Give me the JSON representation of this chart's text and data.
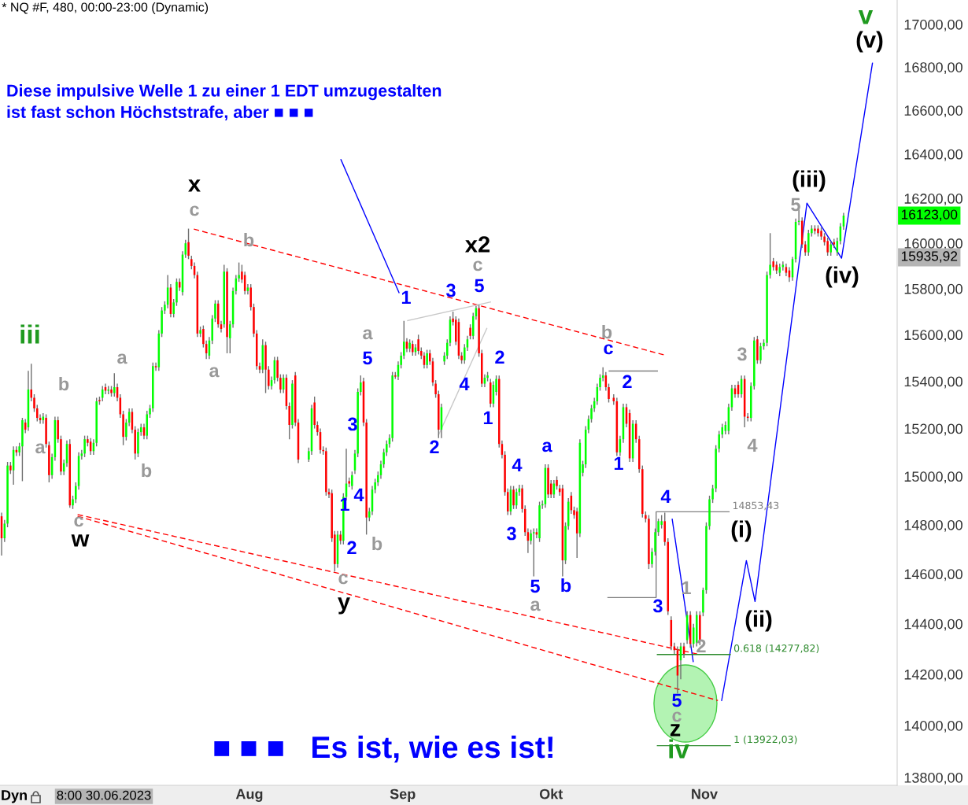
{
  "chart_data": {
    "type": "candlestick",
    "title": "* NQ #F, 480, 00:00-23:00 (Dynamic)",
    "log": true,
    "xlim": [
      "2023-06-11T13:12",
      "2023-12-10"
    ],
    "ylim": [
      13770,
      17115
    ],
    "xticks": [
      {
        "value": "2023-08-01",
        "label": "Aug"
      },
      {
        "value": "2023-09-01",
        "label": "Sep"
      },
      {
        "value": "2023-10-01",
        "label": "Okt"
      },
      {
        "value": "2023-11-01",
        "label": "Nov"
      }
    ],
    "yticks": [
      {
        "value": 13800,
        "label": "13800,00"
      },
      {
        "value": 14000,
        "label": "14000,00"
      },
      {
        "value": 14200,
        "label": "14200,00"
      },
      {
        "value": 14400,
        "label": "14400,00"
      },
      {
        "value": 14600,
        "label": "14600,00"
      },
      {
        "value": 14800,
        "label": "14800,00"
      },
      {
        "value": 15000,
        "label": "15000,00"
      },
      {
        "value": 15200,
        "label": "15200,00"
      },
      {
        "value": 15400,
        "label": "15400,00"
      },
      {
        "value": 15600,
        "label": "15600,00"
      },
      {
        "value": 15800,
        "label": "15800,00"
      },
      {
        "value": 16000,
        "label": "16000,00"
      },
      {
        "value": 16200,
        "label": "16200,00"
      },
      {
        "value": 16400,
        "label": "16400,00"
      },
      {
        "value": 16600,
        "label": "16600,00"
      },
      {
        "value": 16800,
        "label": "16800,00"
      },
      {
        "value": 17000,
        "label": "17000,00"
      }
    ],
    "color": "#707070",
    "x": [
      "2023-06-11T21:00",
      "2023-06-12T11:24",
      "2023-06-13T01:48",
      "2023-06-13T16:12",
      "2023-06-14T06:36",
      "2023-06-14T21:00",
      "2023-06-15T11:24",
      "2023-06-16T01:48",
      "2023-06-16T16:12",
      "2023-06-17T06:36",
      "2023-06-17T21:00",
      "2023-06-18T11:24",
      "2023-06-19T01:48",
      "2023-06-19T16:12",
      "2023-06-20T06:36",
      "2023-06-20T21:00",
      "2023-06-21T11:24",
      "2023-06-22T01:48",
      "2023-06-22T16:12",
      "2023-06-23T06:36",
      "2023-06-23T21:00",
      "2023-06-24T11:24",
      "2023-06-25T01:48",
      "2023-06-25T16:12",
      "2023-06-26T06:36",
      "2023-06-26T21:00",
      "2023-06-27T11:24",
      "2023-06-28T01:48",
      "2023-06-28T16:12",
      "2023-06-29T06:36",
      "2023-06-29T21:00",
      "2023-06-30T11:24",
      "2023-07-01T01:48",
      "2023-07-01T16:12",
      "2023-07-02T06:36",
      "2023-07-02T21:00",
      "2023-07-03T11:24",
      "2023-07-04T01:48",
      "2023-07-04T16:12",
      "2023-07-05T06:36",
      "2023-07-05T21:00",
      "2023-07-06T11:24",
      "2023-07-07T01:48",
      "2023-07-07T16:12",
      "2023-07-08T06:36",
      "2023-07-08T21:00",
      "2023-07-09T11:24",
      "2023-07-10T01:48",
      "2023-07-10T16:12",
      "2023-07-11T06:36",
      "2023-07-11T21:00",
      "2023-07-12T11:24",
      "2023-07-13T01:48",
      "2023-07-13T16:12",
      "2023-07-14T06:36",
      "2023-07-14T21:00",
      "2023-07-15T11:24",
      "2023-07-16T01:48",
      "2023-07-16T16:12",
      "2023-07-17T06:36",
      "2023-07-17T21:00",
      "2023-07-18T11:24",
      "2023-07-19T01:48",
      "2023-07-19T16:12",
      "2023-07-20T06:36",
      "2023-07-20T21:00",
      "2023-07-21T11:24",
      "2023-07-22T01:48",
      "2023-07-22T16:12",
      "2023-07-23T06:36",
      "2023-07-23T21:00",
      "2023-07-24T11:24",
      "2023-07-25T01:48",
      "2023-07-25T16:12",
      "2023-07-26T06:36",
      "2023-07-26T21:00",
      "2023-07-27T11:24",
      "2023-07-28T01:48",
      "2023-07-28T16:12",
      "2023-07-29T06:36",
      "2023-07-29T21:00",
      "2023-07-30T11:24",
      "2023-07-31T01:48",
      "2023-07-31T16:12",
      "2023-08-01T06:36",
      "2023-08-01T21:00",
      "2023-08-02T11:24",
      "2023-08-03T01:48",
      "2023-08-03T16:12",
      "2023-08-04T06:36",
      "2023-08-04T21:00",
      "2023-08-05T11:24",
      "2023-08-06T01:48",
      "2023-08-06T16:12",
      "2023-08-07T06:36",
      "2023-08-07T21:00",
      "2023-08-08T11:24",
      "2023-08-09T01:48",
      "2023-08-09T16:12",
      "2023-08-10T06:36",
      "2023-08-10T21:00",
      "2023-08-13T00:00",
      "2023-08-13T14:00",
      "2023-08-14T04:00",
      "2023-08-14T18:00",
      "2023-08-15T08:00",
      "2023-08-15T22:00",
      "2023-08-16T12:00",
      "2023-08-17T02:00",
      "2023-08-17T16:00",
      "2023-08-18T06:00",
      "2023-08-18T20:00",
      "2023-08-19T10:00",
      "2023-08-20T00:00",
      "2023-08-20T14:00",
      "2023-08-21T04:00",
      "2023-08-21T18:00",
      "2023-08-22T08:00",
      "2023-08-22T22:00",
      "2023-08-23T12:00",
      "2023-08-24T02:00",
      "2023-08-24T16:00",
      "2023-08-25T06:00",
      "2023-08-25T20:00",
      "2023-08-26T10:00",
      "2023-08-27T00:00",
      "2023-08-27T14:00",
      "2023-08-28T04:00",
      "2023-08-28T18:00",
      "2023-08-29T08:00",
      "2023-08-29T22:00",
      "2023-08-30T12:00",
      "2023-08-31T02:00",
      "2023-08-31T16:00",
      "2023-09-01T06:00",
      "2023-09-01T20:00",
      "2023-09-02T10:00",
      "2023-09-03T00:00",
      "2023-09-03T14:00",
      "2023-09-04T04:00",
      "2023-09-04T18:00",
      "2023-09-05T08:00",
      "2023-09-05T22:00",
      "2023-09-06T12:00",
      "2023-09-07T02:00",
      "2023-09-07T16:00",
      "2023-09-08T06:00",
      "2023-09-08T20:00",
      "2023-09-09T10:00",
      "2023-09-10T00:00",
      "2023-09-10T14:00",
      "2023-09-11T04:00",
      "2023-09-11T18:00",
      "2023-09-12T08:00",
      "2023-09-12T22:00",
      "2023-09-13T12:00",
      "2023-09-14T02:00",
      "2023-09-14T16:00",
      "2023-09-15T06:00",
      "2023-09-15T20:00",
      "2023-09-16T10:00",
      "2023-09-17T00:00",
      "2023-09-17T14:00",
      "2023-09-18T04:00",
      "2023-09-18T18:00",
      "2023-09-19T08:00",
      "2023-09-19T22:00",
      "2023-09-20T12:00",
      "2023-09-21T02:00",
      "2023-09-21T16:00",
      "2023-09-22T06:00",
      "2023-09-22T20:00",
      "2023-09-23T10:00",
      "2023-09-24T00:00",
      "2023-09-24T14:00",
      "2023-09-25T04:00",
      "2023-09-25T18:00",
      "2023-09-26T08:00",
      "2023-09-26T22:00",
      "2023-09-27T12:00",
      "2023-09-28T02:00",
      "2023-09-28T16:00",
      "2023-09-29T06:00",
      "2023-09-29T20:00",
      "2023-09-30T10:00",
      "2023-10-01T00:00",
      "2023-10-01T14:00",
      "2023-10-02T04:00",
      "2023-10-02T18:00",
      "2023-10-03T08:00",
      "2023-10-03T22:00",
      "2023-10-04T12:00",
      "2023-10-05T02:00",
      "2023-10-05T16:00",
      "2023-10-06T06:00",
      "2023-10-06T20:00",
      "2023-10-07T10:00",
      "2023-10-08T00:00",
      "2023-10-08T14:00",
      "2023-10-09T04:00",
      "2023-10-09T18:00",
      "2023-10-10T08:00",
      "2023-10-10T22:00",
      "2023-10-11T12:00",
      "2023-10-12T02:00",
      "2023-10-12T16:00",
      "2023-10-13T16:00",
      "2023-10-14T07:30",
      "2023-10-14T23:00",
      "2023-10-15T14:30",
      "2023-10-16T06:00",
      "2023-10-16T21:30",
      "2023-10-17T13:00",
      "2023-10-18T04:30",
      "2023-10-18T20:00",
      "2023-10-19T11:30",
      "2023-10-20T03:00",
      "2023-10-20T18:30",
      "2023-10-21T10:00",
      "2023-10-22T01:30",
      "2023-10-22T17:00",
      "2023-10-23T08:30",
      "2023-10-24T00:00",
      "2023-10-24T15:30",
      "2023-10-25T07:00",
      "2023-10-25T22:30",
      "2023-10-26T14:00",
      "2023-10-27T05:30",
      "2023-10-27T21:00",
      "2023-10-28T12:30",
      "2023-10-29T04:00",
      "2023-10-29T19:30",
      "2023-10-30T11:00",
      "2023-10-31T02:30",
      "2023-10-31T18:00",
      "2023-11-01T09:30",
      "2023-11-02T01:00",
      "2023-11-02T16:30",
      "2023-11-03T08:00",
      "2023-11-03T23:30",
      "2023-11-04T15:00",
      "2023-11-05T06:30",
      "2023-11-05T22:00",
      "2023-11-06T13:30",
      "2023-11-07T05:00",
      "2023-11-07T20:30",
      "2023-11-08T12:00",
      "2023-11-09T03:30",
      "2023-11-09T19:00",
      "2023-11-10T10:30",
      "2023-11-11T02:00",
      "2023-11-11T17:30",
      "2023-11-12T09:00",
      "2023-11-13T00:30",
      "2023-11-13T16:00",
      "2023-11-14T07:30",
      "2023-11-14T23:00",
      "2023-11-15T14:30",
      "2023-11-16T06:00",
      "2023-11-16T21:30",
      "2023-11-17T13:00",
      "2023-11-18T04:30",
      "2023-11-18T20:00",
      "2023-11-19T11:30",
      "2023-11-20T03:00",
      "2023-11-20T18:30",
      "2023-11-21T10:00",
      "2023-11-22T01:30",
      "2023-11-22T17:00",
      "2023-11-23T08:30",
      "2023-11-24T00:00",
      "2023-11-24T15:30",
      "2023-11-25T07:00",
      "2023-11-25T22:30",
      "2023-11-26T14:00",
      "2023-11-27T05:30",
      "2023-11-27T21:00",
      "2023-11-28T12:30",
      "2023-11-29T04:00"
    ],
    "ohlc": [
      [
        14835,
        14850,
        14675,
        14745
      ],
      [
        14745,
        14820,
        14730,
        14805
      ],
      [
        14805,
        15060,
        14790,
        15045
      ],
      [
        15045,
        15060,
        15010,
        15025
      ],
      [
        15025,
        15125,
        14965,
        15110
      ],
      [
        15110,
        15125,
        15085,
        15100
      ],
      [
        15100,
        15140,
        15085,
        15125
      ],
      [
        15125,
        15245,
        14980,
        15235
      ],
      [
        15225,
        15240,
        15180,
        15195
      ],
      [
        15205,
        15445,
        15190,
        15365
      ],
      [
        15365,
        15475,
        15315,
        15330
      ],
      [
        15330,
        15345,
        15270,
        15285
      ],
      [
        15285,
        15300,
        15230,
        15245
      ],
      [
        15245,
        15260,
        15220,
        15235
      ],
      [
        15235,
        15265,
        15220,
        15250
      ],
      [
        15245,
        15260,
        15120,
        15135
      ],
      [
        15130,
        15145,
        14975,
        15005
      ],
      [
        15005,
        15095,
        14990,
        15080
      ],
      [
        15080,
        15250,
        15065,
        15235
      ],
      [
        15235,
        15250,
        15140,
        15155
      ],
      [
        15155,
        15170,
        15005,
        15020
      ],
      [
        15020,
        15070,
        15005,
        15055
      ],
      [
        15055,
        15150,
        15040,
        15135
      ],
      [
        15135,
        15155,
        14870,
        14880
      ],
      [
        14880,
        14920,
        14865,
        14905
      ],
      [
        14905,
        14975,
        14890,
        14960
      ],
      [
        14960,
        15100,
        14945,
        15085
      ],
      [
        15085,
        15110,
        15070,
        15095
      ],
      [
        15095,
        15170,
        15080,
        15155
      ],
      [
        15155,
        15170,
        15125,
        15140
      ],
      [
        15145,
        15160,
        15090,
        15105
      ],
      [
        15105,
        15155,
        15090,
        15140
      ],
      [
        15140,
        15330,
        15125,
        15315
      ],
      [
        15320,
        15335,
        15300,
        15315
      ],
      [
        15330,
        15380,
        15315,
        15365
      ],
      [
        15375,
        15390,
        15345,
        15360
      ],
      [
        15360,
        15380,
        15345,
        15365
      ],
      [
        15365,
        15380,
        15335,
        15350
      ],
      [
        15350,
        15435,
        15335,
        15375
      ],
      [
        15375,
        15390,
        15315,
        15330
      ],
      [
        15330,
        15345,
        15245,
        15260
      ],
      [
        15260,
        15275,
        15130,
        15165
      ],
      [
        15165,
        15240,
        15150,
        15225
      ],
      [
        15225,
        15285,
        15210,
        15270
      ],
      [
        15270,
        15285,
        15180,
        15195
      ],
      [
        15195,
        15210,
        15070,
        15095
      ],
      [
        15095,
        15200,
        15080,
        15185
      ],
      [
        15185,
        15220,
        15170,
        15205
      ],
      [
        15205,
        15220,
        15155,
        15170
      ],
      [
        15170,
        15275,
        15155,
        15260
      ],
      [
        15260,
        15300,
        15245,
        15285
      ],
      [
        15285,
        15480,
        15270,
        15465
      ],
      [
        15465,
        15480,
        15445,
        15460
      ],
      [
        15460,
        15620,
        15445,
        15605
      ],
      [
        15605,
        15720,
        15590,
        15705
      ],
      [
        15705,
        15745,
        15690,
        15730
      ],
      [
        15730,
        15860,
        15715,
        15805
      ],
      [
        15805,
        15820,
        15675,
        15690
      ],
      [
        15690,
        15755,
        15675,
        15740
      ],
      [
        15740,
        15845,
        15725,
        15830
      ],
      [
        15830,
        15845,
        15790,
        15805
      ],
      [
        15785,
        15965,
        15770,
        15950
      ],
      [
        15950,
        16015,
        15935,
        16000
      ],
      [
        16005,
        16065,
        15930,
        15945
      ],
      [
        15930,
        15945,
        15885,
        15900
      ],
      [
        15900,
        15915,
        15845,
        15860
      ],
      [
        15860,
        15875,
        15590,
        15605
      ],
      [
        15605,
        15635,
        15590,
        15620
      ],
      [
        15625,
        15640,
        15545,
        15560
      ],
      [
        15560,
        15575,
        15495,
        15520
      ],
      [
        15510,
        15590,
        15495,
        15575
      ],
      [
        15575,
        15685,
        15560,
        15670
      ],
      [
        15670,
        15750,
        15655,
        15735
      ],
      [
        15735,
        15750,
        15630,
        15645
      ],
      [
        15645,
        15660,
        15610,
        15625
      ],
      [
        15645,
        15905,
        15630,
        15875
      ],
      [
        15875,
        15890,
        15520,
        15590
      ],
      [
        15585,
        15660,
        15520,
        15645
      ],
      [
        15645,
        15805,
        15630,
        15790
      ],
      [
        15790,
        15860,
        15775,
        15845
      ],
      [
        15845,
        15915,
        15830,
        15860
      ],
      [
        15875,
        15905,
        15825,
        15840
      ],
      [
        15860,
        15875,
        15775,
        15790
      ],
      [
        15790,
        15820,
        15775,
        15805
      ],
      [
        15805,
        15820,
        15705,
        15720
      ],
      [
        15720,
        15735,
        15590,
        15605
      ],
      [
        15605,
        15620,
        15450,
        15465
      ],
      [
        15465,
        15480,
        15435,
        15450
      ],
      [
        15450,
        15580,
        15435,
        15555
      ],
      [
        15555,
        15570,
        15350,
        15450
      ],
      [
        15450,
        15465,
        15365,
        15380
      ],
      [
        15380,
        15420,
        15365,
        15405
      ],
      [
        15405,
        15505,
        15390,
        15490
      ],
      [
        15490,
        15505,
        15400,
        15415
      ],
      [
        15415,
        15430,
        15350,
        15365
      ],
      [
        15365,
        15430,
        15350,
        15415
      ],
      [
        15415,
        15430,
        15280,
        15295
      ],
      [
        15295,
        15310,
        15155,
        15215
      ],
      [
        15215,
        15405,
        15200,
        15390
      ],
      [
        15425,
        15440,
        15210,
        15225
      ],
      [
        15225,
        15240,
        15055,
        15070
      ],
      [
        15070,
        15120,
        15060,
        15105
      ],
      [
        15105,
        15300,
        15090,
        15285
      ],
      [
        15310,
        15335,
        15200,
        15215
      ],
      [
        15215,
        15230,
        15170,
        15185
      ],
      [
        15185,
        15200,
        15095,
        15110
      ],
      [
        15110,
        15125,
        15090,
        15105
      ],
      [
        15105,
        15120,
        14920,
        14935
      ],
      [
        14935,
        14950,
        14910,
        14925
      ],
      [
        14930,
        14945,
        14730,
        14745
      ],
      [
        14760,
        14775,
        14610,
        14640
      ],
      [
        14640,
        14775,
        14625,
        14760
      ],
      [
        14760,
        14775,
        14720,
        14735
      ],
      [
        14735,
        14930,
        14720,
        14915
      ],
      [
        14915,
        15115,
        14900,
        14970
      ],
      [
        14980,
        14995,
        14955,
        14970
      ],
      [
        14960,
        15020,
        14945,
        15005
      ],
      [
        15025,
        15110,
        15010,
        15095
      ],
      [
        15095,
        15370,
        15080,
        15355
      ],
      [
        15355,
        15425,
        15340,
        15395
      ],
      [
        15400,
        15415,
        15210,
        15225
      ],
      [
        15225,
        15240,
        14760,
        14830
      ],
      [
        14830,
        14870,
        14815,
        14855
      ],
      [
        14855,
        14960,
        14840,
        14945
      ],
      [
        14945,
        14990,
        14930,
        14975
      ],
      [
        14975,
        15020,
        14960,
        15005
      ],
      [
        15005,
        15065,
        14990,
        15050
      ],
      [
        15050,
        15115,
        15035,
        15100
      ],
      [
        15100,
        15150,
        15085,
        15135
      ],
      [
        15135,
        15175,
        15120,
        15160
      ],
      [
        15160,
        15440,
        15145,
        15425
      ],
      [
        15425,
        15440,
        15410,
        15420
      ],
      [
        15420,
        15485,
        15405,
        15470
      ],
      [
        15470,
        15525,
        15455,
        15510
      ],
      [
        15510,
        15660,
        15495,
        15570
      ],
      [
        15570,
        15585,
        15525,
        15540
      ],
      [
        15540,
        15580,
        15525,
        15565
      ],
      [
        15560,
        15575,
        15510,
        15525
      ],
      [
        15525,
        15560,
        15510,
        15545
      ],
      [
        15580,
        15600,
        15515,
        15530
      ],
      [
        15530,
        15545,
        15495,
        15510
      ],
      [
        15510,
        15525,
        15455,
        15470
      ],
      [
        15470,
        15535,
        15455,
        15520
      ],
      [
        15520,
        15535,
        15470,
        15485
      ],
      [
        15485,
        15500,
        15380,
        15395
      ],
      [
        15390,
        15405,
        15330,
        15345
      ],
      [
        15345,
        15360,
        15160,
        15195
      ],
      [
        15195,
        15305,
        15160,
        15290
      ],
      [
        15485,
        15525,
        15470,
        15510
      ],
      [
        15510,
        15580,
        15495,
        15565
      ],
      [
        15565,
        15680,
        15550,
        15665
      ],
      [
        15670,
        15700,
        15640,
        15655
      ],
      [
        15665,
        15680,
        15555,
        15570
      ],
      [
        15655,
        15670,
        15495,
        15510
      ],
      [
        15510,
        15525,
        15475,
        15490
      ],
      [
        15490,
        15560,
        15475,
        15545
      ],
      [
        15545,
        15595,
        15530,
        15580
      ],
      [
        15630,
        15645,
        15580,
        15595
      ],
      [
        15595,
        15695,
        15580,
        15680
      ],
      [
        15680,
        15725,
        15665,
        15715
      ],
      [
        15715,
        15730,
        15505,
        15520
      ],
      [
        15520,
        15535,
        15375,
        15390
      ],
      [
        15390,
        15430,
        15375,
        15415
      ],
      [
        15415,
        15440,
        15400,
        15425
      ],
      [
        15395,
        15410,
        15290,
        15305
      ],
      [
        15305,
        15400,
        15290,
        15385
      ],
      [
        15355,
        15425,
        15340,
        15410
      ],
      [
        15410,
        15425,
        15120,
        15135
      ],
      [
        15135,
        15150,
        15075,
        15090
      ],
      [
        15090,
        15105,
        14920,
        14935
      ],
      [
        14935,
        14950,
        14840,
        14855
      ],
      [
        14855,
        14960,
        14840,
        14945
      ],
      [
        14945,
        14960,
        14865,
        14880
      ],
      [
        14880,
        14950,
        14865,
        14935
      ],
      [
        14935,
        14965,
        14920,
        14950
      ],
      [
        14950,
        14965,
        14850,
        14865
      ],
      [
        14865,
        14880,
        14755,
        14770
      ],
      [
        14770,
        14785,
        14685,
        14735
      ],
      [
        14735,
        14780,
        14720,
        14765
      ],
      [
        14765,
        14785,
        14590,
        14770
      ],
      [
        14770,
        14785,
        14745,
        14760
      ],
      [
        14745,
        14895,
        14730,
        14880
      ],
      [
        14880,
        14900,
        14865,
        14885
      ],
      [
        14885,
        15050,
        14870,
        15035
      ],
      [
        15035,
        15050,
        14910,
        14925
      ],
      [
        14970,
        14985,
        14910,
        14925
      ],
      [
        14925,
        14985,
        14910,
        14970
      ],
      [
        14985,
        15000,
        14945,
        14960
      ],
      [
        14950,
        14965,
        14920,
        14935
      ],
      [
        14950,
        14965,
        14590,
        14655
      ],
      [
        14655,
        14810,
        14640,
        14795
      ],
      [
        14795,
        14910,
        14780,
        14895
      ],
      [
        14920,
        14935,
        14845,
        14860
      ],
      [
        14860,
        14875,
        14825,
        14840
      ],
      [
        14855,
        14870,
        14665,
        14765
      ],
      [
        14765,
        15155,
        14750,
        15140
      ],
      [
        15015,
        15065,
        15000,
        15050
      ],
      [
        15050,
        15210,
        15035,
        15195
      ],
      [
        15195,
        15255,
        15180,
        15240
      ],
      [
        15240,
        15300,
        15225,
        15285
      ],
      [
        15285,
        15330,
        15270,
        15315
      ],
      [
        15315,
        15390,
        15300,
        15375
      ],
      [
        15375,
        15430,
        15360,
        15415
      ],
      [
        15415,
        15460,
        15400,
        15425
      ],
      [
        15425,
        15440,
        15360,
        15375
      ],
      [
        15375,
        15390,
        15310,
        15325
      ],
      [
        15330,
        15345,
        15300,
        15315
      ],
      [
        15315,
        15330,
        15085,
        15100
      ],
      [
        15100,
        15170,
        15085,
        15155
      ],
      [
        15155,
        15305,
        15140,
        15290
      ],
      [
        15290,
        15305,
        15205,
        15220
      ],
      [
        15265,
        15280,
        15060,
        15075
      ],
      [
        15075,
        15235,
        15060,
        15220
      ],
      [
        15220,
        15235,
        15140,
        15155
      ],
      [
        15155,
        15170,
        15015,
        15030
      ],
      [
        15030,
        15045,
        14830,
        14845
      ],
      [
        14840,
        14855,
        14810,
        14825
      ],
      [
        14825,
        14840,
        14620,
        14640
      ],
      [
        14640,
        14705,
        14625,
        14690
      ],
      [
        14690,
        14785,
        14675,
        14770
      ],
      [
        14770,
        14825,
        14755,
        14815
      ],
      [
        14800,
        14840,
        14785,
        14815
      ],
      [
        14815,
        14850,
        14715,
        14730
      ],
      [
        14730,
        14745,
        14435,
        14450
      ],
      [
        14415,
        14430,
        14295,
        14310
      ],
      [
        14310,
        14325,
        14280,
        14295
      ],
      [
        14295,
        14310,
        14125,
        14195
      ],
      [
        14255,
        14325,
        14180,
        14310
      ],
      [
        14310,
        14325,
        14265,
        14280
      ],
      [
        14335,
        14450,
        14320,
        14435
      ],
      [
        14435,
        14450,
        14305,
        14320
      ],
      [
        14320,
        14400,
        14305,
        14385
      ],
      [
        14325,
        14450,
        14310,
        14435
      ],
      [
        14435,
        14450,
        14315,
        14330
      ],
      [
        14445,
        14545,
        14430,
        14535
      ],
      [
        14535,
        14810,
        14520,
        14795
      ],
      [
        14795,
        14920,
        14780,
        14905
      ],
      [
        14905,
        14965,
        14890,
        14950
      ],
      [
        14950,
        15130,
        14935,
        15115
      ],
      [
        15115,
        15190,
        15100,
        15175
      ],
      [
        15175,
        15220,
        15160,
        15205
      ],
      [
        15190,
        15230,
        15175,
        15215
      ],
      [
        15190,
        15305,
        15175,
        15290
      ],
      [
        15290,
        15385,
        15275,
        15370
      ],
      [
        15370,
        15385,
        15330,
        15345
      ],
      [
        15385,
        15400,
        15330,
        15345
      ],
      [
        15345,
        15425,
        15330,
        15410
      ],
      [
        15410,
        15425,
        15205,
        15250
      ],
      [
        15250,
        15265,
        15230,
        15245
      ],
      [
        15245,
        15395,
        15230,
        15380
      ],
      [
        15380,
        15590,
        15365,
        15575
      ],
      [
        15580,
        15595,
        15475,
        15490
      ],
      [
        15490,
        15565,
        15475,
        15550
      ],
      [
        15550,
        15580,
        15535,
        15565
      ],
      [
        15565,
        15875,
        15550,
        15860
      ],
      [
        15860,
        16045,
        15845,
        15905
      ],
      [
        15920,
        15935,
        15880,
        15895
      ],
      [
        15905,
        15920,
        15865,
        15880
      ],
      [
        15870,
        15910,
        15855,
        15895
      ],
      [
        15895,
        15920,
        15880,
        15905
      ],
      [
        15895,
        15910,
        15855,
        15870
      ],
      [
        15880,
        15895,
        15830,
        15850
      ],
      [
        15850,
        15940,
        15835,
        15930
      ],
      [
        15930,
        16110,
        15915,
        16095
      ],
      [
        16095,
        16150,
        16080,
        16100
      ],
      [
        16100,
        16115,
        15980,
        15995
      ],
      [
        15995,
        16010,
        15945,
        15960
      ],
      [
        15960,
        16060,
        15945,
        16045
      ],
      [
        16045,
        16080,
        16030,
        16065
      ],
      [
        16065,
        16080,
        16040,
        16055
      ],
      [
        16065,
        16080,
        16030,
        16045
      ],
      [
        16055,
        16070,
        16015,
        16030
      ],
      [
        16030,
        16045,
        15990,
        16005
      ],
      [
        16010,
        16025,
        15945,
        15960
      ],
      [
        15960,
        16010,
        15945,
        15995
      ],
      [
        16005,
        16020,
        15980,
        15995
      ],
      [
        15960,
        16025,
        15945,
        16010
      ],
      [
        16010,
        16090,
        15995,
        16075
      ],
      [
        16075,
        16135,
        16060,
        16123
      ]
    ],
    "colors": [
      "#ff0000",
      "#00ff00",
      "#00ff00",
      "#ff0000",
      "#00ff00",
      "#ff0000",
      "#00ff00",
      "#00ff00",
      "#ff0000",
      "#00ff00",
      "#ff0000",
      "#ff0000",
      "#ff0000",
      "#ff0000",
      "#00ff00",
      "#ff0000",
      "#ff0000",
      "#00ff00",
      "#00ff00",
      "#ff0000",
      "#ff0000",
      "#00ff00",
      "#00ff00",
      "#ff0000",
      "#00ff00",
      "#00ff00",
      "#00ff00",
      "#00ff00",
      "#00ff00",
      "#ff0000",
      "#ff0000",
      "#00ff00",
      "#00ff00",
      "#ff0000",
      "#00ff00",
      "#ff0000",
      "#00ff00",
      "#ff0000",
      "#00ff00",
      "#ff0000",
      "#ff0000",
      "#ff0000",
      "#00ff00",
      "#00ff00",
      "#ff0000",
      "#ff0000",
      "#00ff00",
      "#00ff00",
      "#ff0000",
      "#00ff00",
      "#00ff00",
      "#00ff00",
      "#ff0000",
      "#00ff00",
      "#00ff00",
      "#00ff00",
      "#00ff00",
      "#ff0000",
      "#00ff00",
      "#00ff00",
      "#ff0000",
      "#00ff00",
      "#00ff00",
      "#ff0000",
      "#ff0000",
      "#ff0000",
      "#ff0000",
      "#00ff00",
      "#ff0000",
      "#ff0000",
      "#00ff00",
      "#00ff00",
      "#00ff00",
      "#ff0000",
      "#ff0000",
      "#00ff00",
      "#ff0000",
      "#00ff00",
      "#00ff00",
      "#00ff00",
      "#00ff00",
      "#ff0000",
      "#ff0000",
      "#00ff00",
      "#ff0000",
      "#ff0000",
      "#ff0000",
      "#ff0000",
      "#00ff00",
      "#ff0000",
      "#ff0000",
      "#00ff00",
      "#00ff00",
      "#ff0000",
      "#ff0000",
      "#00ff00",
      "#ff0000",
      "#ff0000",
      "#00ff00",
      "#ff0000",
      "#ff0000",
      "#00ff00",
      "#00ff00",
      "#ff0000",
      "#ff0000",
      "#ff0000",
      "#ff0000",
      "#ff0000",
      "#ff0000",
      "#ff0000",
      "#ff0000",
      "#00ff00",
      "#ff0000",
      "#00ff00",
      "#00ff00",
      "#ff0000",
      "#00ff00",
      "#00ff00",
      "#00ff00",
      "#00ff00",
      "#ff0000",
      "#ff0000",
      "#00ff00",
      "#00ff00",
      "#00ff00",
      "#00ff00",
      "#00ff00",
      "#00ff00",
      "#00ff00",
      "#00ff00",
      "#00ff00",
      "#ff0000",
      "#00ff00",
      "#00ff00",
      "#00ff00",
      "#ff0000",
      "#00ff00",
      "#ff0000",
      "#00ff00",
      "#ff0000",
      "#ff0000",
      "#ff0000",
      "#00ff00",
      "#ff0000",
      "#ff0000",
      "#ff0000",
      "#ff0000",
      "#00ff00",
      "#00ff00",
      "#00ff00",
      "#00ff00",
      "#ff0000",
      "#ff0000",
      "#ff0000",
      "#ff0000",
      "#00ff00",
      "#00ff00",
      "#ff0000",
      "#00ff00",
      "#00ff00",
      "#ff0000",
      "#ff0000",
      "#00ff00",
      "#00ff00",
      "#ff0000",
      "#00ff00",
      "#00ff00",
      "#ff0000",
      "#ff0000",
      "#ff0000",
      "#ff0000",
      "#00ff00",
      "#ff0000",
      "#00ff00",
      "#00ff00",
      "#ff0000",
      "#ff0000",
      "#ff0000",
      "#00ff00",
      "#00ff00",
      "#ff0000",
      "#00ff00",
      "#00ff00",
      "#00ff00",
      "#ff0000",
      "#ff0000",
      "#00ff00",
      "#ff0000",
      "#ff0000",
      "#ff0000",
      "#00ff00",
      "#00ff00",
      "#ff0000",
      "#ff0000",
      "#ff0000",
      "#00ff00",
      "#00ff00",
      "#00ff00",
      "#00ff00",
      "#00ff00",
      "#00ff00",
      "#00ff00",
      "#00ff00",
      "#00ff00",
      "#ff0000",
      "#ff0000",
      "#ff0000",
      "#ff0000",
      "#00ff00",
      "#00ff00",
      "#ff0000",
      "#ff0000",
      "#00ff00",
      "#ff0000",
      "#ff0000",
      "#ff0000",
      "#ff0000",
      "#ff0000",
      "#00ff00",
      "#00ff00",
      "#00ff00",
      "#00ff00",
      "#ff0000",
      "#ff0000",
      "#ff0000",
      "#ff0000",
      "#ff0000",
      "#00ff00",
      "#ff0000",
      "#00ff00",
      "#ff0000",
      "#00ff00",
      "#00ff00",
      "#ff0000",
      "#00ff00",
      "#00ff00",
      "#00ff00",
      "#00ff00",
      "#00ff00",
      "#00ff00",
      "#00ff00",
      "#00ff00",
      "#00ff00",
      "#00ff00",
      "#ff0000",
      "#ff0000",
      "#00ff00",
      "#ff0000",
      "#ff0000",
      "#00ff00",
      "#00ff00",
      "#ff0000",
      "#00ff00",
      "#00ff00",
      "#00ff00",
      "#00ff00",
      "#ff0000",
      "#ff0000",
      "#00ff00",
      "#00ff00",
      "#ff0000",
      "#ff0000",
      "#00ff00",
      "#00ff00",
      "#00ff00",
      "#ff0000",
      "#ff0000",
      "#00ff00",
      "#00ff00",
      "#ff0000",
      "#ff0000",
      "#ff0000",
      "#ff0000",
      "#ff0000",
      "#00ff00",
      "#ff0000",
      "#00ff00",
      "#00ff00",
      "#00ff00"
    ],
    "series": [
      {
        "type": "line",
        "x": [
          "2023-07-20T18:00",
          "2023-10-24"
        ],
        "values": [
          16063,
          15512
        ],
        "color": "#ff0000",
        "line_style": "dashed"
      },
      {
        "type": "line",
        "x": [
          "2023-06-27T06:00",
          "2023-10-31"
        ],
        "values": [
          14842,
          14278
        ],
        "color": "#ff0000",
        "line_style": "dashed"
      },
      {
        "type": "line",
        "x": [
          "2023-06-27T06:00",
          "2023-11-03T18:00"
        ],
        "values": [
          14835,
          14097
        ],
        "color": "#ff0000",
        "line_style": "dashed"
      },
      {
        "type": "line",
        "x": [
          "2023-08-19T12:00",
          "2023-08-31T06:00"
        ],
        "values": [
          16375,
          15783
        ],
        "color": "#0000ff",
        "line_style": "solid"
      },
      {
        "type": "line",
        "x": [
          "2023-10-25T12:00",
          "2023-10-29T18:00"
        ],
        "values": [
          14823,
          14250
        ],
        "color": "#0000ff",
        "line_style": "solid"
      },
      {
        "type": "line",
        "x": [
          "2023-11-04T12:00",
          "2023-11-09T12:00",
          "2023-11-11T06:00",
          "2023-11-21T18:00",
          "2023-11-28T18:00",
          "2023-12-05"
        ],
        "values": [
          14097,
          14654,
          14489,
          16179,
          15934,
          16818
        ],
        "color": "#0000ff",
        "line_style": "solid"
      },
      {
        "type": "line",
        "x": [
          "2023-09-02",
          "2023-09-18T18:00"
        ],
        "values": [
          15661,
          15742
        ],
        "color": "#c8c8c8",
        "line_style": "solid"
      },
      {
        "type": "line",
        "x": [
          "2023-09-08T06:00",
          "2023-09-18"
        ],
        "values": [
          15173,
          15627
        ],
        "color": "#c8c8c8",
        "line_style": "solid"
      },
      {
        "type": "line",
        "x": [
          "2023-10-12T18:00",
          "2023-10-22T12:00"
        ],
        "values": [
          15444,
          15444
        ],
        "color": "#808080",
        "line_style": "solid"
      },
      {
        "type": "line",
        "x": [
          "2023-10-12T12:00",
          "2023-10-22T06:00",
          "2023-10-22T06:00",
          "2023-11-06"
        ],
        "values": [
          14505,
          14505,
          14853.43,
          14853.43
        ],
        "color": "#808080",
        "line_style": "solid",
        "value_labels": [
          null,
          null,
          null,
          "14853,43"
        ]
      },
      {
        "type": "line",
        "x": [
          "2023-10-22T12:00",
          "2023-11-06T06:00"
        ],
        "values": [
          14277.82,
          14277.82
        ],
        "color": "#2e8b2e",
        "line_style": "solid",
        "value_labels": [
          null,
          "0.618 (14277,82)"
        ]
      },
      {
        "type": "line",
        "x": [
          "2023-10-22T12:00",
          "2023-11-06T06:00"
        ],
        "values": [
          13922.03,
          13922.03
        ],
        "color": "#2e8b2e",
        "line_style": "solid",
        "value_labels": [
          null,
          "1 (13922,03)"
        ]
      }
    ],
    "annotations": [
      "Diese impulsive Welle 1 zu einer 1 EDT umzugestalten\nist fast schon Höchststrafe, aber ■ ■ ■",
      "■ ■ ■   Es ist, wie es ist!",
      "Dyn",
      "16123,00",
      "15935,92",
      "8:00 30.06.2023",
      "x",
      "w",
      "y",
      "x2",
      "z",
      "(iii)",
      "(iv)",
      "(v)",
      "(i)",
      "(ii)",
      "iii",
      "v",
      "iv",
      "c",
      "b",
      "a",
      "b",
      "a",
      "a",
      "b",
      "c",
      "c",
      "a",
      "b",
      "c",
      "a",
      "b",
      "1",
      "2",
      "c",
      "3",
      "4",
      "5",
      "1",
      "3",
      "5",
      "5",
      "3",
      "1",
      "4",
      "2",
      "2",
      "4",
      "2",
      "1",
      "4",
      "3",
      "a",
      "5",
      "b",
      "c",
      "2",
      "1",
      "4",
      "3",
      "5"
    ]
  }
}
